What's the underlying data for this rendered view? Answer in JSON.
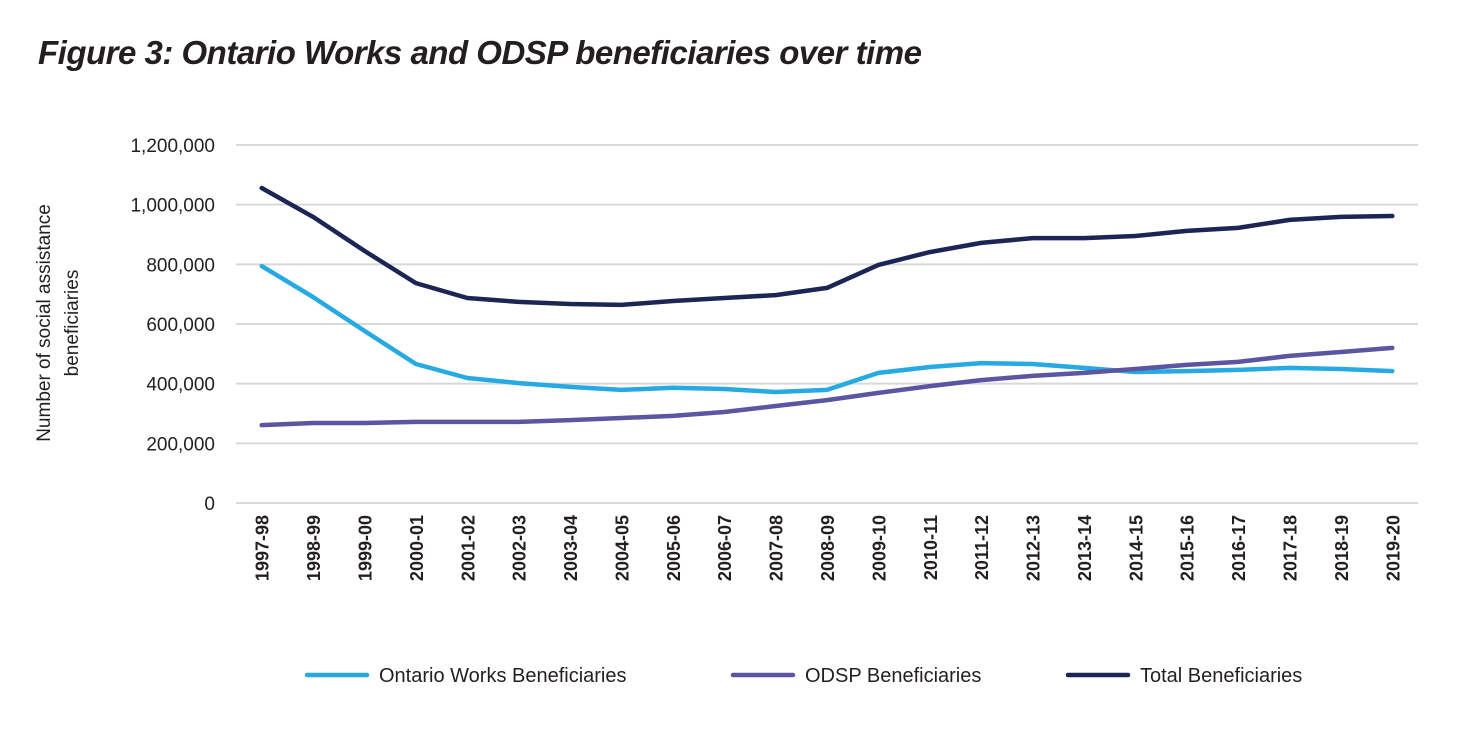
{
  "chart_data": {
    "type": "line",
    "title": "Figure 3: Ontario Works and ODSP beneficiaries over time",
    "xlabel": "",
    "ylabel": "Number of social assistance beneficiaries",
    "ylabel_lines": [
      "Number of social assistance",
      "beneficiaries"
    ],
    "ylim": [
      0,
      1200000
    ],
    "yticks": [
      0,
      200000,
      400000,
      600000,
      800000,
      1000000,
      1200000
    ],
    "ytick_labels": [
      "0",
      "200,000",
      "400,000",
      "600,000",
      "800,000",
      "1,000,000",
      "1,200,000"
    ],
    "grid": true,
    "legend_position": "bottom",
    "categories": [
      "1997-98",
      "1998-99",
      "1999-00",
      "2000-01",
      "2001-02",
      "2002-03",
      "2003-04",
      "2004-05",
      "2005-06",
      "2006-07",
      "2007-08",
      "2008-09",
      "2009-10",
      "2010-11",
      "2011-12",
      "2012-13",
      "2013-14",
      "2014-15",
      "2015-16",
      "2016-17",
      "2017-18",
      "2018-19",
      "2019-20"
    ],
    "series": [
      {
        "name": "Ontario Works Beneficiaries",
        "color": "#27aae1",
        "values": [
          794000,
          690000,
          577000,
          466000,
          419000,
          402000,
          389000,
          379000,
          386000,
          382000,
          372000,
          379000,
          436000,
          456000,
          469000,
          466000,
          453000,
          439000,
          442000,
          446000,
          453000,
          449000,
          442000
        ]
      },
      {
        "name": "ODSP Beneficiaries",
        "color": "#5b55a2",
        "values": [
          261000,
          268000,
          268000,
          272000,
          272000,
          272000,
          278000,
          285000,
          292000,
          305000,
          325000,
          345000,
          369000,
          392000,
          412000,
          426000,
          436000,
          449000,
          463000,
          473000,
          493000,
          506000,
          520000
        ]
      },
      {
        "name": "Total Beneficiaries",
        "color": "#1b2654",
        "values": [
          1056000,
          959000,
          845000,
          737000,
          687000,
          674000,
          667000,
          664000,
          677000,
          687000,
          697000,
          721000,
          798000,
          841000,
          872000,
          888000,
          888000,
          895000,
          912000,
          922000,
          949000,
          959000,
          962000
        ]
      }
    ],
    "gridline_color": "#d9d9d9"
  }
}
